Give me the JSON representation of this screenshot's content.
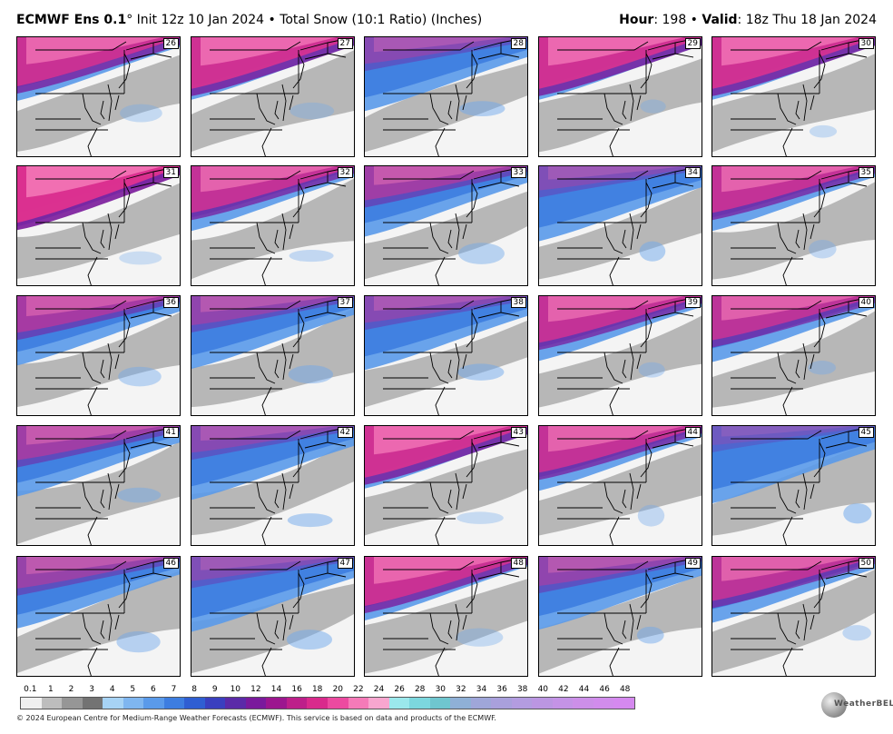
{
  "header": {
    "model": "ECMWF Ens 0.1",
    "degree": "°",
    "init": " Init 12z 10 Jan 2024",
    "sep": " • ",
    "product": "Total Snow (10:1 Ratio) (Inches)",
    "hour_label": "Hour",
    "hour_value": ": 198",
    "valid_label": "Valid",
    "valid_value": ": 18z Thu 18 Jan 2024"
  },
  "panels": [
    {
      "member": "26",
      "intensity": 0.8
    },
    {
      "member": "31",
      "intensity": 0.95
    },
    {
      "member": "36",
      "intensity": 0.55
    },
    {
      "member": "41",
      "intensity": 0.5
    },
    {
      "member": "46",
      "intensity": 0.45
    },
    {
      "member": "27",
      "intensity": 0.85
    },
    {
      "member": "32",
      "intensity": 0.75
    },
    {
      "member": "37",
      "intensity": 0.4
    },
    {
      "member": "42",
      "intensity": 0.35
    },
    {
      "member": "47",
      "intensity": 0.3
    },
    {
      "member": "28",
      "intensity": 0.35
    },
    {
      "member": "33",
      "intensity": 0.5
    },
    {
      "member": "38",
      "intensity": 0.35
    },
    {
      "member": "43",
      "intensity": 0.85
    },
    {
      "member": "48",
      "intensity": 0.8
    },
    {
      "member": "29",
      "intensity": 0.85
    },
    {
      "member": "34",
      "intensity": 0.3
    },
    {
      "member": "39",
      "intensity": 0.75
    },
    {
      "member": "44",
      "intensity": 0.75
    },
    {
      "member": "49",
      "intensity": 0.4
    },
    {
      "member": "30",
      "intensity": 0.85
    },
    {
      "member": "35",
      "intensity": 0.75
    },
    {
      "member": "40",
      "intensity": 0.7
    },
    {
      "member": "45",
      "intensity": 0.2
    },
    {
      "member": "50",
      "intensity": 0.7
    }
  ],
  "colorbar": {
    "labels": [
      "0.1",
      "1",
      "2",
      "3",
      "4",
      "5",
      "6",
      "7",
      "8",
      "9",
      "10",
      "12",
      "14",
      "16",
      "18",
      "20",
      "22",
      "24",
      "26",
      "28",
      "30",
      "32",
      "34",
      "36",
      "38",
      "40",
      "42",
      "44",
      "46",
      "48"
    ],
    "colors": [
      "#f0f0f0",
      "#bdbdbd",
      "#969696",
      "#737373",
      "#a7d3f5",
      "#7fb6f0",
      "#5a9aea",
      "#3d7de0",
      "#2f5ed2",
      "#3a3fbf",
      "#5b2aa8",
      "#7a1a9c",
      "#9c168f",
      "#bd1f8a",
      "#d92a8c",
      "#ec4aa0",
      "#f57ab8",
      "#f8a6cf",
      "#9be8ec",
      "#7cd7de",
      "#6fc6cf",
      "#8fb0d6",
      "#9fa6d9",
      "#a9a0dc",
      "#b39ce0",
      "#bb96e2",
      "#c493e6",
      "#cc8fe8",
      "#d18cec",
      "#d589ef"
    ]
  },
  "footer": {
    "credit": "© 2024 European Centre for Medium-Range Weather Forecasts (ECMWF). This service is based on data and products of the ECMWF.",
    "logo": "WeatherBELL"
  }
}
